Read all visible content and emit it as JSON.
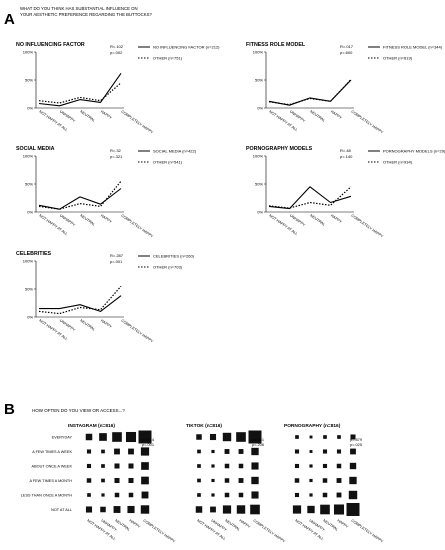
{
  "figure": {
    "panel_a_letter": "A",
    "panel_b_letter": "B",
    "question_a": "WHAT DO YOU THINK HAS SUBSTANTIAL INFLUENCE ON YOUR AESTHETIC PREFERENCE REGARDING THE BUTTOCKS?",
    "question_b": "HOW OFTEN DO YOU VIEW OR ACCESS...?"
  },
  "chart_data": [
    {
      "type": "line",
      "title": "NO INFLUENCING FACTOR",
      "categories": [
        "NOT HAPPY AT ALL",
        "UNHAPPY",
        "NEUTRAL",
        "HAPPY",
        "COMPLETELY HAPPY"
      ],
      "yticks": [
        "100%",
        "50%",
        "0%"
      ],
      "ylim": [
        0,
        100
      ],
      "stats": [
        "R=.102",
        "p=.002"
      ],
      "series": [
        {
          "name": "NO INFLUENCING FACTOR (n=212)",
          "style": "solid",
          "values": [
            8,
            4,
            15,
            10,
            62
          ]
        },
        {
          "name": "OTHER (n=751)",
          "style": "dotted",
          "values": [
            13,
            9,
            19,
            13,
            45
          ]
        }
      ]
    },
    {
      "type": "line",
      "title": "FITNESS ROLE MODEL",
      "categories": [
        "NOT HAPPY AT ALL",
        "UNHAPPY",
        "NEUTRAL",
        "HAPPY",
        "COMPLETELY HAPPY"
      ],
      "yticks": [
        "100%",
        "50%",
        "0%"
      ],
      "ylim": [
        0,
        100
      ],
      "stats": [
        "R=.017",
        "p=.600"
      ],
      "series": [
        {
          "name": "FITNESS ROLE MODEL (n=344)",
          "style": "solid",
          "values": [
            12,
            5,
            18,
            12,
            50
          ]
        },
        {
          "name": "OTHER (n=619)",
          "style": "dotted",
          "values": [
            11,
            6,
            17,
            12,
            51
          ]
        }
      ]
    },
    {
      "type": "line",
      "title": "SOCIAL MEDIA",
      "categories": [
        "NOT HAPPY AT ALL",
        "UNHAPPY",
        "NEUTRAL",
        "HAPPY",
        "COMPLETELY HAPPY"
      ],
      "yticks": [
        "100%",
        "50%",
        "0%"
      ],
      "ylim": [
        0,
        100
      ],
      "stats": [
        "R=.32",
        "p=.321"
      ],
      "series": [
        {
          "name": "SOCIAL MEDIA (n=422)",
          "style": "solid",
          "values": [
            12,
            5,
            27,
            14,
            42
          ]
        },
        {
          "name": "OTHER (n=541)",
          "style": "dotted",
          "values": [
            10,
            5,
            15,
            10,
            55
          ]
        }
      ]
    },
    {
      "type": "line",
      "title": "PORNOGRAPHY MODELS",
      "categories": [
        "NOT HAPPY AT ALL",
        "UNHAPPY",
        "NEUTRAL",
        "HAPPY",
        "COMPLETELY HAPPY"
      ],
      "yticks": [
        "100%",
        "50%",
        "0%"
      ],
      "ylim": [
        0,
        100
      ],
      "stats": [
        "R=.48",
        "p=.140"
      ],
      "series": [
        {
          "name": "PORNOGRAPHY MODELS (n=29)",
          "style": "solid",
          "values": [
            10,
            6,
            45,
            17,
            28
          ]
        },
        {
          "name": "OTHER (n=934)",
          "style": "dotted",
          "values": [
            11,
            7,
            17,
            12,
            45
          ]
        }
      ]
    },
    {
      "type": "line",
      "title": "CELEBRITIES",
      "categories": [
        "NOT HAPPY AT ALL",
        "UNHAPPY",
        "NEUTRAL",
        "HAPPY",
        "COMPLETELY HAPPY"
      ],
      "yticks": [
        "100%",
        "50%",
        "0%"
      ],
      "ylim": [
        0,
        100
      ],
      "stats": [
        "R=.287",
        "p=.001"
      ],
      "series": [
        {
          "name": "CELEBRITIES (n=260)",
          "style": "solid",
          "values": [
            15,
            15,
            22,
            10,
            38
          ]
        },
        {
          "name": "OTHER (n=703)",
          "style": "dotted",
          "values": [
            10,
            6,
            17,
            13,
            55
          ]
        }
      ]
    },
    {
      "type": "bubble",
      "title": "INSTAGRAM (n=816)",
      "x_categories": [
        "NOT HAPPY AT ALL",
        "UNHAPPY",
        "NEUTRAL",
        "HAPPY",
        "COMPLETELY HAPPY"
      ],
      "y_categories": [
        "EVERYDAY",
        "A FEW TIMES A WEEK",
        "ABOUT ONCE A WEEK",
        "A FEW TIMES A MONTH",
        "LESS THAN ONCE A MONTH",
        "NOT AT ALL"
      ],
      "stats": [
        "p=.134",
        "p=.001"
      ],
      "sizes": [
        [
          0.25,
          0.35,
          0.55,
          0.6,
          1.0
        ],
        [
          0.1,
          0.08,
          0.2,
          0.2,
          0.4
        ],
        [
          0.1,
          0.08,
          0.15,
          0.15,
          0.35
        ],
        [
          0.12,
          0.08,
          0.15,
          0.15,
          0.35
        ],
        [
          0.08,
          0.06,
          0.12,
          0.12,
          0.28
        ],
        [
          0.22,
          0.18,
          0.28,
          0.3,
          0.42
        ]
      ]
    },
    {
      "type": "bubble",
      "title": "TIKTOK (n=816)",
      "x_categories": [
        "NOT HAPPY AT ALL",
        "UNHAPPY",
        "NEUTRAL",
        "HAPPY",
        "COMPLETELY HAPPY"
      ],
      "y_categories": [
        "EVERYDAY",
        "A FEW TIMES A WEEK",
        "ABOUT ONCE A WEEK",
        "A FEW TIMES A MONTH",
        "LESS THAN ONCE A MONTH",
        "NOT AT ALL"
      ],
      "stats": [
        "p=.061",
        "p=.206"
      ],
      "sizes": [
        [
          0.18,
          0.22,
          0.42,
          0.55,
          1.0
        ],
        [
          0.08,
          0.06,
          0.14,
          0.14,
          0.32
        ],
        [
          0.08,
          0.06,
          0.12,
          0.12,
          0.3
        ],
        [
          0.08,
          0.06,
          0.12,
          0.14,
          0.32
        ],
        [
          0.08,
          0.06,
          0.12,
          0.12,
          0.3
        ],
        [
          0.25,
          0.2,
          0.4,
          0.42,
          0.55
        ]
      ]
    },
    {
      "type": "bubble",
      "title": "PORNOGRAPHY (n=816)",
      "x_categories": [
        "NOT HAPPY AT ALL",
        "UNHAPPY",
        "NEUTRAL",
        "HAPPY",
        "COMPLETELY HAPPY"
      ],
      "y_categories": [
        "EVERYDAY",
        "A FEW TIMES A WEEK",
        "ABOUT ONCE A WEEK",
        "A FEW TIMES A MONTH",
        "LESS THAN ONCE A MONTH",
        "NOT AT ALL"
      ],
      "stats": [
        "p=.879",
        "p=.025"
      ],
      "sizes": [
        [
          0.08,
          0.05,
          0.08,
          0.08,
          0.15
        ],
        [
          0.1,
          0.05,
          0.1,
          0.1,
          0.2
        ],
        [
          0.1,
          0.06,
          0.1,
          0.12,
          0.24
        ],
        [
          0.12,
          0.06,
          0.12,
          0.14,
          0.32
        ],
        [
          0.1,
          0.06,
          0.12,
          0.14,
          0.42
        ],
        [
          0.4,
          0.32,
          0.55,
          0.6,
          1.0
        ]
      ]
    }
  ]
}
